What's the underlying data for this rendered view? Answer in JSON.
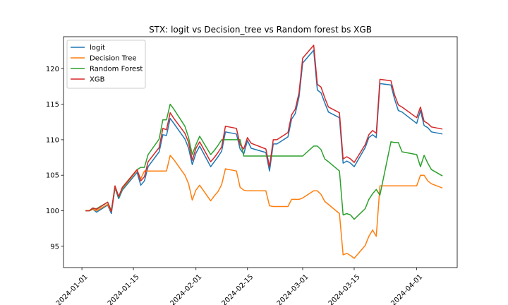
{
  "chart_data": {
    "type": "line",
    "title": "STX: logit vs Decision_tree vs Random forest bs XGB",
    "xlabel": "",
    "ylabel": "",
    "x_ticks": [
      "2024-01-01",
      "2024-01-15",
      "2024-02-01",
      "2024-02-15",
      "2024-03-01",
      "2024-03-15",
      "2024-04-01"
    ],
    "y_ticks": [
      95,
      100,
      105,
      110,
      115,
      120
    ],
    "xlim": [
      "2023-12-27",
      "2024-04-12"
    ],
    "ylim": [
      92,
      124.5
    ],
    "grid": false,
    "legend": "top-left",
    "x": [
      "2024-01-02",
      "2024-01-03",
      "2024-01-04",
      "2024-01-05",
      "2024-01-08",
      "2024-01-09",
      "2024-01-10",
      "2024-01-11",
      "2024-01-12",
      "2024-01-16",
      "2024-01-17",
      "2024-01-18",
      "2024-01-19",
      "2024-01-22",
      "2024-01-23",
      "2024-01-24",
      "2024-01-25",
      "2024-01-26",
      "2024-01-29",
      "2024-01-30",
      "2024-01-31",
      "2024-02-01",
      "2024-02-02",
      "2024-02-05",
      "2024-02-06",
      "2024-02-07",
      "2024-02-08",
      "2024-02-09",
      "2024-02-12",
      "2024-02-13",
      "2024-02-14",
      "2024-02-15",
      "2024-02-16",
      "2024-02-20",
      "2024-02-21",
      "2024-02-22",
      "2024-02-23",
      "2024-02-26",
      "2024-02-27",
      "2024-02-28",
      "2024-02-29",
      "2024-03-01",
      "2024-03-04",
      "2024-03-05",
      "2024-03-06",
      "2024-03-07",
      "2024-03-08",
      "2024-03-11",
      "2024-03-12",
      "2024-03-13",
      "2024-03-14",
      "2024-03-15",
      "2024-03-18",
      "2024-03-19",
      "2024-03-20",
      "2024-03-21",
      "2024-03-22",
      "2024-03-25",
      "2024-03-26",
      "2024-03-27",
      "2024-03-28",
      "2024-04-01",
      "2024-04-02",
      "2024-04-03",
      "2024-04-04",
      "2024-04-05",
      "2024-04-08"
    ],
    "series": [
      {
        "name": "logit",
        "color": "#1f77b4",
        "values": [
          100.0,
          100.0,
          100.2,
          99.8,
          100.8,
          99.6,
          103.2,
          101.7,
          102.9,
          105.4,
          103.6,
          104.2,
          106.2,
          108.3,
          110.7,
          110.6,
          113.0,
          112.3,
          110.1,
          108.8,
          106.5,
          108.1,
          109.1,
          106.2,
          106.9,
          107.6,
          108.4,
          111.1,
          110.8,
          108.7,
          108.0,
          109.9,
          108.8,
          108.2,
          105.6,
          109.4,
          109.4,
          110.4,
          112.9,
          113.7,
          116.0,
          120.8,
          122.6,
          117.0,
          116.6,
          115.2,
          113.9,
          113.1,
          106.7,
          107.0,
          106.7,
          106.2,
          108.9,
          110.3,
          110.7,
          110.3,
          117.9,
          117.7,
          115.7,
          114.1,
          113.9,
          112.3,
          114.1,
          112.0,
          111.7,
          111.1,
          110.8
        ]
      },
      {
        "name": "Decision Tree",
        "color": "#ff7f0e",
        "values": [
          100.0,
          100.0,
          100.2,
          100.0,
          100.9,
          99.9,
          103.3,
          102.0,
          103.1,
          105.7,
          104.5,
          105.6,
          105.6,
          105.6,
          105.6,
          105.6,
          107.8,
          107.2,
          105.0,
          103.8,
          101.5,
          102.9,
          103.6,
          101.4,
          102.1,
          102.7,
          103.7,
          105.9,
          105.6,
          103.3,
          102.9,
          102.8,
          102.8,
          102.8,
          100.7,
          100.6,
          100.6,
          100.6,
          101.6,
          101.6,
          101.6,
          101.8,
          102.8,
          102.8,
          102.3,
          101.3,
          100.9,
          99.6,
          93.8,
          94.0,
          93.7,
          93.3,
          95.1,
          96.4,
          97.3,
          96.4,
          103.5,
          103.5,
          103.5,
          103.5,
          103.5,
          103.5,
          105.0,
          105.0,
          104.2,
          103.8,
          103.2
        ]
      },
      {
        "name": "Random Forest",
        "color": "#2ca02c",
        "values": [
          100.0,
          100.0,
          100.3,
          100.3,
          101.2,
          100.0,
          103.4,
          101.9,
          103.2,
          105.8,
          106.1,
          106.1,
          107.9,
          110.1,
          112.8,
          112.8,
          115.0,
          114.3,
          111.9,
          110.3,
          107.9,
          109.3,
          110.5,
          107.9,
          108.5,
          109.2,
          110.0,
          110.0,
          110.0,
          110.0,
          107.7,
          107.7,
          107.7,
          107.7,
          107.7,
          107.7,
          107.7,
          107.7,
          107.7,
          107.7,
          107.7,
          107.7,
          109.1,
          109.1,
          108.6,
          107.3,
          106.9,
          105.6,
          99.4,
          99.6,
          99.4,
          98.8,
          100.3,
          101.6,
          102.4,
          103.0,
          102.2,
          109.7,
          109.6,
          109.6,
          108.3,
          107.9,
          106.2,
          107.8,
          106.7,
          105.8,
          104.9
        ]
      },
      {
        "name": "XGB",
        "color": "#d62728",
        "values": [
          100.0,
          100.0,
          100.4,
          100.2,
          101.2,
          99.9,
          103.5,
          102.0,
          103.3,
          105.8,
          104.2,
          104.8,
          106.9,
          108.9,
          111.6,
          111.4,
          113.8,
          113.0,
          110.9,
          109.6,
          107.1,
          108.8,
          109.7,
          106.9,
          107.5,
          108.2,
          109.0,
          111.9,
          111.6,
          109.3,
          108.7,
          110.3,
          109.5,
          108.7,
          106.2,
          110.0,
          110.0,
          111.0,
          113.5,
          114.3,
          116.6,
          121.5,
          123.3,
          117.8,
          117.4,
          115.9,
          114.6,
          113.8,
          107.3,
          107.6,
          107.3,
          106.8,
          109.3,
          110.7,
          111.3,
          110.9,
          118.5,
          118.3,
          116.3,
          114.9,
          114.6,
          113.1,
          114.6,
          112.6,
          112.3,
          111.8,
          111.5
        ]
      }
    ]
  }
}
